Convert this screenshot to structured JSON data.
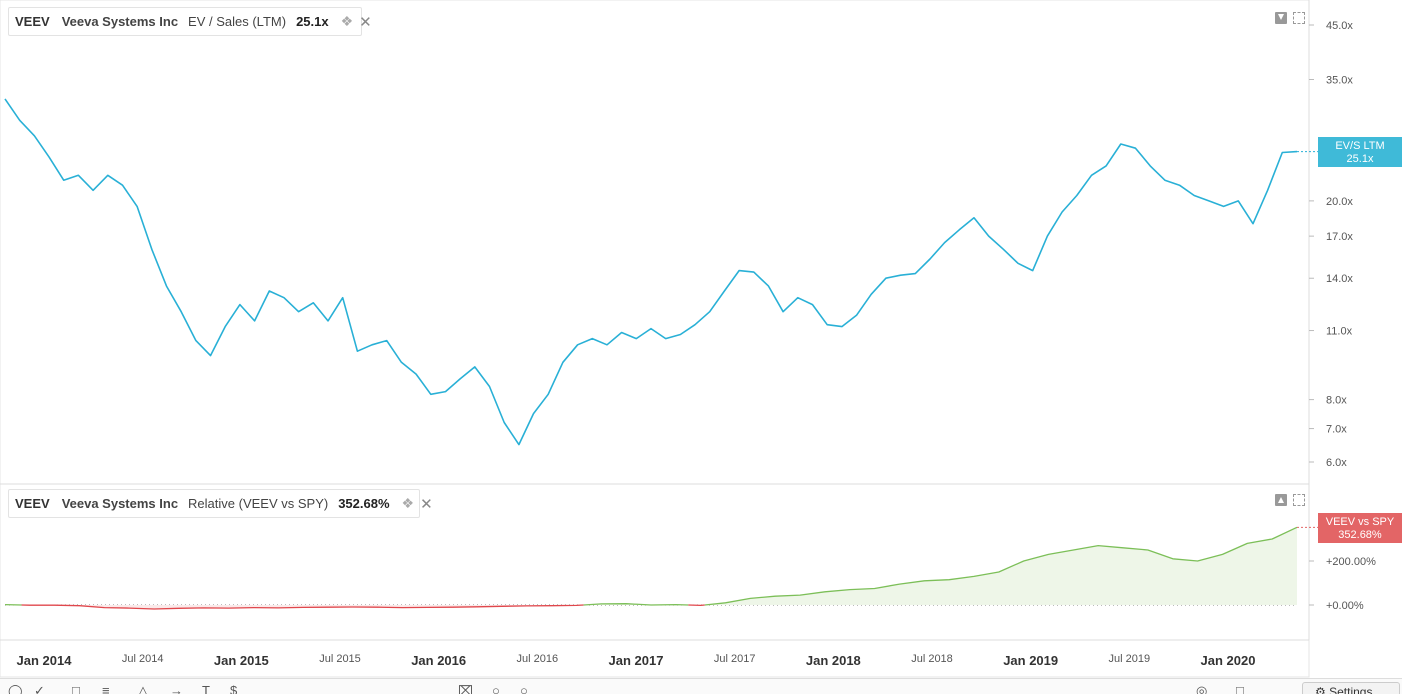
{
  "ticker": "VEEV",
  "company": "Veeva Systems Inc",
  "top_legend": {
    "metric": "EV / Sales (LTM)",
    "value": "25.1x"
  },
  "bottom_legend": {
    "metric": "Relative (VEEV vs SPY)",
    "value": "352.68%"
  },
  "badges": {
    "top_line1": "EV/S LTM",
    "top_line2": "25.1x",
    "bottom_line1": "VEEV vs SPY",
    "bottom_line2": "352.68%"
  },
  "icons": {
    "legend_settings": "layers-icon",
    "legend_close": "close-icon",
    "pane_down": "move-down-icon",
    "pane_up": "move-up-icon",
    "pane_expand": "expand-icon",
    "settings": "gear-icon"
  },
  "colors": {
    "ev_line": "#29b0d6",
    "ev_badge": "#3fbad8",
    "rel_positive": "#7cbf58",
    "rel_negative": "#e0474c",
    "rel_positive_fill": "#eef6e8",
    "rel_negative_fill": "#fbeaea",
    "rel_badge": "#e36566"
  },
  "toolbar": {
    "settings_label": "Settings"
  },
  "chart_data": [
    {
      "type": "line",
      "title": "",
      "series": [
        {
          "name": "EV / Sales (LTM)",
          "values": [
            32.0,
            29.0,
            27.0,
            24.5,
            22.0,
            22.5,
            21.0,
            22.5,
            21.5,
            19.5,
            16.0,
            13.5,
            12.0,
            10.5,
            9.8,
            11.2,
            12.4,
            11.5,
            13.2,
            12.8,
            12.0,
            12.5,
            11.5,
            12.8,
            10.0,
            10.3,
            10.5,
            9.5,
            9.0,
            8.2,
            8.3,
            8.8,
            9.3,
            8.5,
            7.2,
            6.5,
            7.5,
            8.2,
            9.5,
            10.3,
            10.6,
            10.3,
            10.9,
            10.6,
            11.1,
            10.6,
            10.8,
            11.3,
            12.0,
            13.2,
            14.5,
            14.4,
            13.5,
            12.0,
            12.8,
            12.4,
            11.3,
            11.2,
            11.8,
            13.0,
            14.0,
            14.2,
            14.3,
            15.3,
            16.5,
            17.5,
            18.5,
            17.0,
            16.0,
            15.0,
            14.5,
            17.0,
            19.0,
            20.5,
            22.5,
            23.5,
            26.0,
            25.5,
            23.5,
            22.0,
            21.5,
            20.5,
            20.0,
            19.5,
            20.0,
            18.0,
            21.0,
            25.0,
            25.1
          ]
        }
      ],
      "x_labels": [
        "Jan 2014",
        "Jul 2014",
        "Jan 2015",
        "Jul 2015",
        "Jan 2016",
        "Jul 2016",
        "Jan 2017",
        "Jul 2017",
        "Jan 2018",
        "Jul 2018",
        "Jan 2019",
        "Jul 2019",
        "Jan 2020"
      ],
      "x_range": [
        "Nov 2013",
        "Sep 2020"
      ],
      "y_ticks": [
        "45.0x",
        "35.0x",
        "20.0x",
        "17.0x",
        "14.0x",
        "11.0x",
        "8.0x",
        "7.0x",
        "6.0x"
      ],
      "y_scale": "log",
      "grid": false
    },
    {
      "type": "area",
      "title": "",
      "series": [
        {
          "name": "Relative (VEEV vs SPY)",
          "values": [
            2,
            -1,
            -1,
            -3,
            -12,
            -14,
            -18,
            -15,
            -13,
            -14,
            -12,
            -13,
            -11,
            -10,
            -9,
            -10,
            -12,
            -11,
            -10,
            -8,
            -6,
            -4,
            -3,
            -2,
            5,
            6,
            0,
            2,
            -2,
            10,
            30,
            40,
            45,
            60,
            70,
            75,
            95,
            110,
            115,
            130,
            150,
            200,
            230,
            250,
            270,
            260,
            250,
            210,
            200,
            230,
            280,
            300,
            353
          ]
        }
      ],
      "y_ticks": [
        "+200.00%",
        "+0.00%"
      ],
      "ylabel": "",
      "grid": false
    }
  ]
}
